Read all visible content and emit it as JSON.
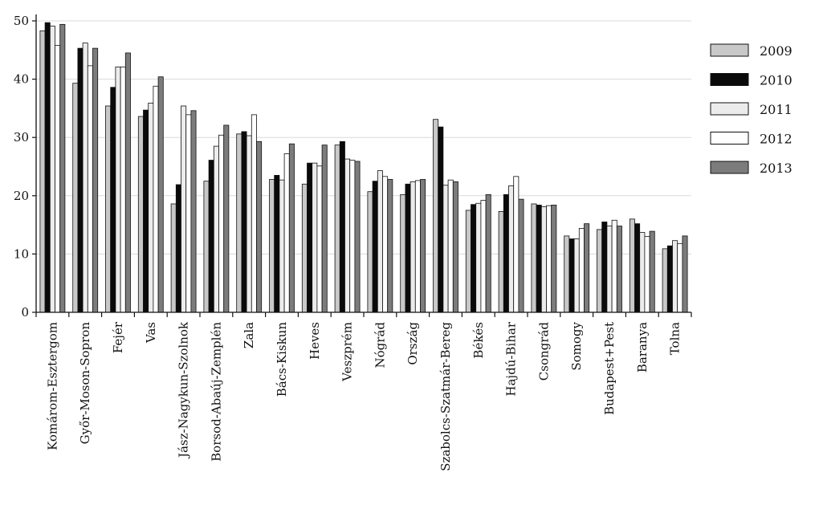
{
  "chart_data": {
    "type": "bar",
    "categories": [
      "Komárom-Esztergom",
      "Győr-Moson-Sopron",
      "Fejér",
      "Vas",
      "Jász-Nagykun-Szolnok",
      "Borsod-Abaúj-Zemplén",
      "Zala",
      "Bács-Kiskun",
      "Heves",
      "Veszprém",
      "Nógrád",
      "Ország",
      "Szabolcs-Szatmár-Bereg",
      "Békés",
      "Hajdú-Bihar",
      "Csongrád",
      "Somogy",
      "Budapest+Pest",
      "Baranya",
      "Tolna"
    ],
    "series": [
      {
        "name": "2009",
        "color": "#c8c8c8",
        "values": [
          48.3,
          39.3,
          35.4,
          33.6,
          18.6,
          22.5,
          30.6,
          22.8,
          22.0,
          28.7,
          20.7,
          20.2,
          33.1,
          17.5,
          17.3,
          18.6,
          13.1,
          14.2,
          16.0,
          10.9
        ]
      },
      {
        "name": "2010",
        "color": "#0a0a0a",
        "values": [
          49.7,
          45.3,
          38.6,
          34.7,
          21.9,
          26.1,
          31.0,
          23.5,
          25.6,
          29.3,
          22.5,
          22.0,
          31.8,
          18.5,
          20.2,
          18.4,
          12.6,
          15.5,
          15.2,
          11.4
        ]
      },
      {
        "name": "2011",
        "color": "#ececec",
        "values": [
          49.1,
          46.2,
          42.1,
          35.9,
          35.4,
          28.5,
          30.3,
          22.7,
          25.6,
          26.3,
          24.3,
          22.4,
          21.8,
          18.7,
          21.7,
          18.1,
          12.6,
          14.8,
          13.7,
          12.3
        ]
      },
      {
        "name": "2012",
        "color": "#ffffff",
        "values": [
          45.8,
          42.3,
          42.1,
          38.8,
          33.9,
          30.4,
          33.9,
          27.2,
          25.1,
          26.1,
          23.3,
          22.6,
          22.7,
          19.2,
          23.3,
          18.3,
          14.4,
          15.8,
          13.0,
          11.8
        ]
      },
      {
        "name": "2013",
        "color": "#7c7c7c",
        "values": [
          49.4,
          45.3,
          44.5,
          40.4,
          34.6,
          32.1,
          29.3,
          28.9,
          28.7,
          25.9,
          22.8,
          22.8,
          22.4,
          20.2,
          19.4,
          18.4,
          15.2,
          14.8,
          13.9,
          13.1
        ]
      }
    ],
    "y_ticks": [
      "0",
      "10",
      "20",
      "30",
      "40",
      "50"
    ],
    "ylim": [
      0,
      50
    ],
    "grid": true,
    "legend_position": "right"
  }
}
